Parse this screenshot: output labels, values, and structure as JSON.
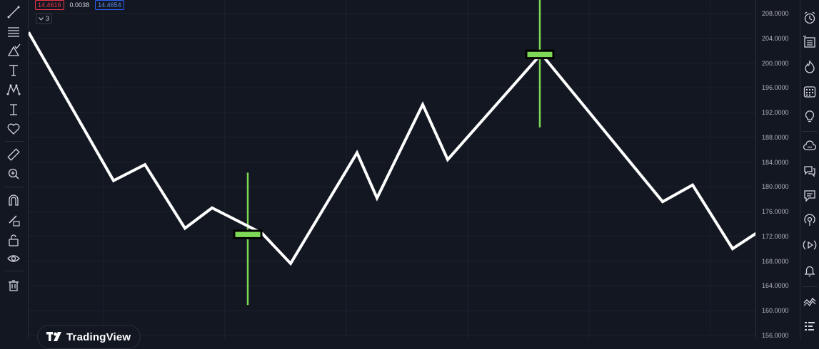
{
  "legend": {
    "bid": "14.4616",
    "spread": "0.0038",
    "ask": "14.4654"
  },
  "collapse": {
    "count": "3"
  },
  "brand": {
    "name": "TradingView"
  },
  "price_scale": {
    "labels": [
      "208.0000",
      "204.0000",
      "200.0000",
      "196.0000",
      "192.0000",
      "188.0000",
      "184.0000",
      "180.0000",
      "176.0000",
      "172.0000",
      "168.0000",
      "164.0000",
      "160.0000",
      "156.0000"
    ]
  },
  "colors": {
    "background": "#131722",
    "line": "#ffffff",
    "candle": "#7ed957",
    "wick": "#7ed957",
    "grid": "#1e222d"
  },
  "left_toolbar": [
    "trend-line-icon",
    "fib-lines-icon",
    "shapes-icon",
    "text-icon",
    "pattern-icon",
    "measure-icon",
    "heart-icon",
    "ruler-icon",
    "zoom-in-icon",
    "magnet-icon",
    "lock-pencil-icon",
    "unlock-icon",
    "eye-icon",
    "trash-icon"
  ],
  "right_toolbar": [
    "alarm-clock-icon",
    "watchlist-icon",
    "hotlist-icon",
    "calendar-grid-icon",
    "idea-bulb-icon",
    "cloud-chat-icon",
    "chat-bubbles-icon",
    "comments-icon",
    "broadcast-icon",
    "play-stream-icon",
    "bell-icon",
    "trend-wave-icon",
    "dom-grid-icon"
  ],
  "chart_data": {
    "type": "line",
    "y_range": [
      155.4,
      210.2
    ],
    "line": {
      "x": [
        0,
        119,
        163,
        219,
        257,
        327,
        367,
        460,
        488,
        552,
        587,
        718,
        888,
        930,
        986,
        1023,
        1065
      ],
      "y": [
        205.0,
        181.0,
        183.6,
        173.3,
        176.6,
        172.5,
        167.6,
        185.5,
        178.2,
        193.3,
        184.4,
        201.5,
        177.6,
        180.3,
        170.0,
        172.8,
        168.4
      ]
    },
    "candles": [
      {
        "x": 307,
        "open": 172.9,
        "close": 171.7,
        "high": 182.3,
        "low": 160.9
      },
      {
        "x": 716,
        "open": 202.0,
        "close": 200.8,
        "high": 212.0,
        "low": 189.6
      }
    ]
  }
}
